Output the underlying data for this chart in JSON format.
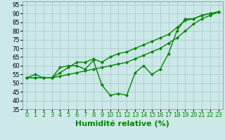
{
  "xlabel": "Humidité relative (%)",
  "xlim": [
    -0.5,
    23.5
  ],
  "ylim": [
    35,
    97
  ],
  "yticks": [
    35,
    40,
    45,
    50,
    55,
    60,
    65,
    70,
    75,
    80,
    85,
    90,
    95
  ],
  "xticks": [
    0,
    1,
    2,
    3,
    4,
    5,
    6,
    7,
    8,
    9,
    10,
    11,
    12,
    13,
    14,
    15,
    16,
    17,
    18,
    19,
    20,
    21,
    22,
    23
  ],
  "bg_color": "#cce8e8",
  "grid_color": "#aacccc",
  "line_color": "#008800",
  "series1": [
    53,
    55,
    53,
    53,
    59,
    60,
    60,
    58,
    63,
    49,
    43,
    44,
    43,
    56,
    60,
    55,
    58,
    67,
    80,
    87,
    87,
    89,
    90,
    91
  ],
  "series2": [
    53,
    53,
    53,
    53,
    56,
    59,
    62,
    62,
    64,
    62,
    65,
    67,
    68,
    70,
    72,
    74,
    76,
    78,
    82,
    86,
    87,
    89,
    90,
    91
  ],
  "series3": [
    53,
    53,
    53,
    53,
    54,
    55,
    56,
    57,
    58,
    59,
    60,
    61,
    62,
    64,
    66,
    68,
    70,
    73,
    76,
    80,
    84,
    87,
    89,
    91
  ],
  "marker": "D",
  "markersize": 2.0,
  "linewidth": 1.0,
  "xlabel_fontsize": 8,
  "tick_fontsize": 6
}
